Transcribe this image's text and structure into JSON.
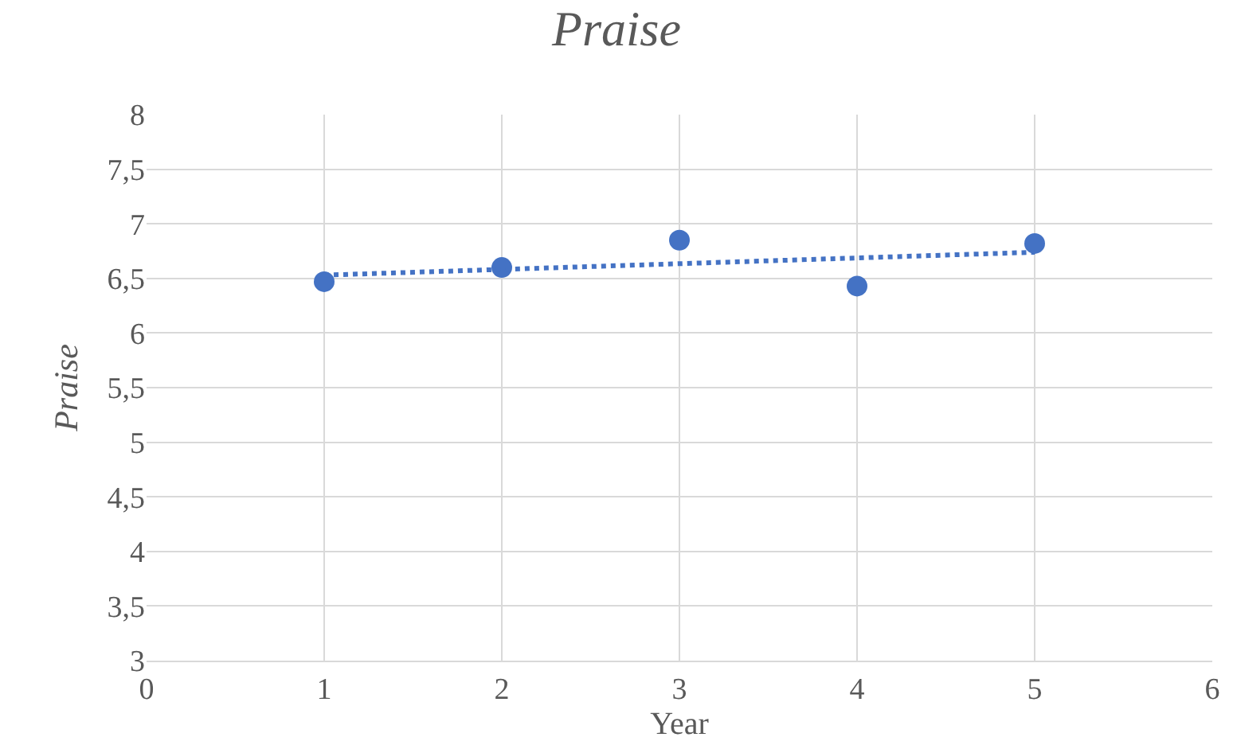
{
  "chart_data": {
    "type": "scatter",
    "title": "Praise",
    "xlabel": "Year",
    "ylabel": "Praise",
    "x": [
      1,
      2,
      3,
      4,
      5
    ],
    "series": [
      {
        "color": "#4472c4",
        "marker": "circle",
        "values": [
          6.47,
          6.6,
          6.85,
          6.43,
          6.82
        ]
      },
      {
        "type": "line",
        "color": "#4472c4",
        "marker": "none",
        "line_style": "dotted",
        "x": [
          1,
          5
        ],
        "values": [
          6.53,
          6.74
        ]
      }
    ],
    "xlim": [
      0,
      6
    ],
    "xticks": [
      0,
      1,
      2,
      3,
      4,
      5,
      6
    ],
    "ylim": [
      3,
      8
    ],
    "yticks": [
      3,
      {
        "value": 3.5,
        "label": "3,5"
      },
      4,
      {
        "value": 4.5,
        "label": "4,5"
      },
      5,
      {
        "value": 5.5,
        "label": "5,5"
      },
      6,
      {
        "value": 6.5,
        "label": "6,5"
      },
      7,
      {
        "value": 7.5,
        "label": "7,5"
      },
      8
    ],
    "grid": true
  }
}
